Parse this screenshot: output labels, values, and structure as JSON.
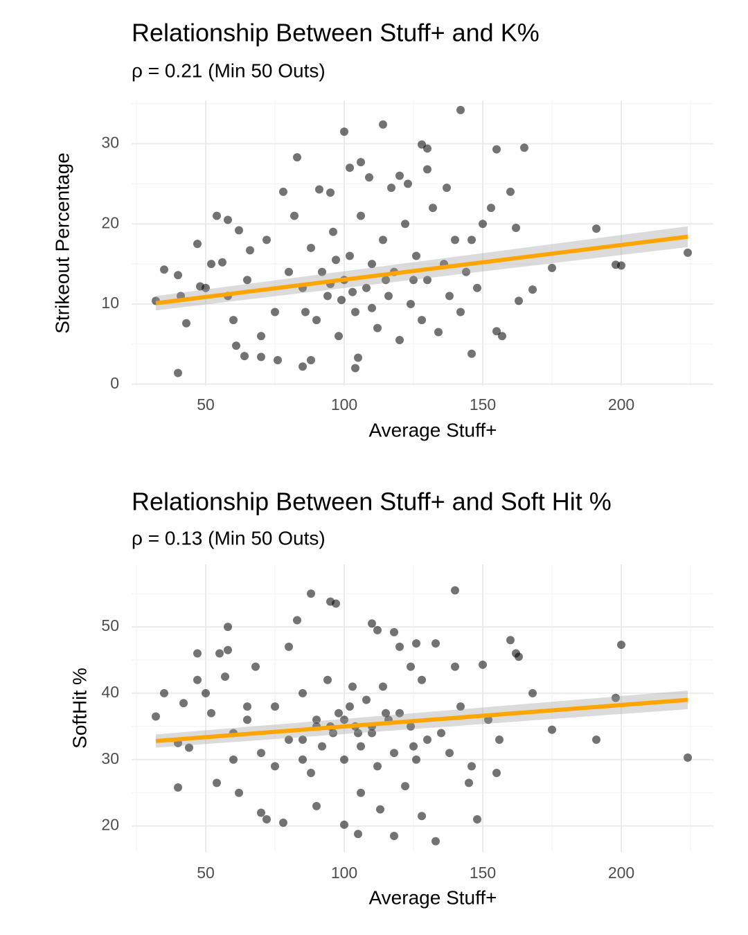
{
  "chart_data": [
    {
      "type": "scatter",
      "title": "Relationship Between Stuff+ and K%",
      "subtitle": "ρ = 0.21 (Min 50 Outs)",
      "x_label": "Average Stuff+",
      "y_label": "Strikeout Percentage",
      "xlim": [
        23.25,
        233.25
      ],
      "ylim": [
        -0.2,
        35.4
      ],
      "xticks": [
        50,
        100,
        150,
        200
      ],
      "yticks": [
        0,
        10,
        20,
        30
      ],
      "xminor": [
        25,
        75,
        125,
        175,
        225
      ],
      "yminor": [
        5,
        15,
        25,
        35
      ],
      "grid": true,
      "point_color": "#000000",
      "x": [
        32,
        35,
        40,
        40,
        41,
        43,
        47,
        48,
        50,
        52,
        54,
        56,
        58,
        58,
        61,
        62,
        64,
        66,
        70,
        76,
        78,
        83,
        85,
        91,
        95,
        100,
        102,
        106,
        109,
        114,
        117,
        120,
        123,
        128,
        130,
        130,
        137,
        142,
        146,
        155,
        165,
        160,
        162,
        168,
        175,
        191,
        198,
        200,
        224,
        104,
        105,
        88,
        150,
        155,
        157,
        163,
        153,
        146,
        60,
        65,
        70,
        72,
        75,
        80,
        82,
        85,
        88,
        90,
        92,
        94,
        96,
        98,
        100,
        102,
        104,
        106,
        108,
        110,
        112,
        114,
        116,
        118,
        120,
        122,
        124,
        126,
        128,
        130,
        132,
        134,
        136,
        138,
        140,
        142,
        144,
        148,
        95,
        99,
        103,
        97,
        110,
        86,
        115,
        125
      ],
      "y": [
        10.4,
        14.3,
        1.4,
        13.6,
        11,
        7.6,
        17.5,
        12.2,
        12,
        15,
        21,
        15.2,
        11,
        20.5,
        4.8,
        19.2,
        3.5,
        16.7,
        3.4,
        3,
        24,
        28.3,
        2.2,
        24.3,
        23.9,
        31.5,
        27,
        27.7,
        25.8,
        32.4,
        24.5,
        26,
        25,
        29.9,
        29.4,
        26.8,
        24.5,
        34.2,
        3.8,
        29.3,
        29.5,
        24,
        19.5,
        11.8,
        14.5,
        19.4,
        14.9,
        14.8,
        16.4,
        2,
        3.3,
        3,
        20,
        6.6,
        6,
        10.4,
        22,
        18,
        8,
        13,
        6,
        18,
        9,
        14,
        21,
        12,
        17,
        8,
        14,
        11,
        19,
        6,
        13,
        16,
        9,
        21,
        12,
        15,
        7,
        18,
        11,
        14,
        5.5,
        20,
        10,
        16,
        8,
        13,
        22,
        6.5,
        15,
        11,
        18,
        9,
        14,
        12,
        12.5,
        10.5,
        11.5,
        15.5,
        9.5,
        9,
        13,
        13
      ],
      "trend": {
        "x": [
          32,
          224
        ],
        "y": [
          10.1,
          18.4
        ],
        "lower": [
          9.2,
          17.1
        ],
        "upper": [
          11.0,
          19.7
        ],
        "color": "#ffa500"
      }
    },
    {
      "type": "scatter",
      "title": "Relationship Between Stuff+ and Soft Hit %",
      "subtitle": "ρ = 0.13 (Min 50 Outs)",
      "x_label": "Average Stuff+",
      "y_label": "SoftHit %",
      "xlim": [
        23.25,
        233.25
      ],
      "ylim": [
        16.1,
        59.4
      ],
      "xticks": [
        50,
        100,
        150,
        200
      ],
      "yticks": [
        20,
        30,
        40,
        50
      ],
      "xminor": [
        25,
        75,
        125,
        175,
        225
      ],
      "yminor": [
        25,
        35,
        45,
        55
      ],
      "grid": true,
      "point_color": "#000000",
      "x": [
        32,
        35,
        40,
        40,
        42,
        44,
        47,
        47,
        50,
        52,
        54,
        55,
        57,
        58,
        58,
        60,
        62,
        65,
        68,
        70,
        72,
        75,
        78,
        80,
        83,
        85,
        88,
        90,
        95,
        97,
        100,
        103,
        106,
        110,
        112,
        118,
        118,
        120,
        124,
        126,
        133,
        133,
        140,
        140,
        145,
        148,
        150,
        155,
        160,
        162,
        163,
        168,
        175,
        191,
        198,
        200,
        224,
        105,
        113,
        128,
        60,
        65,
        70,
        75,
        80,
        85,
        88,
        90,
        92,
        94,
        96,
        98,
        100,
        102,
        104,
        106,
        108,
        110,
        112,
        114,
        116,
        118,
        120,
        122,
        124,
        126,
        128,
        130,
        135,
        138,
        142,
        146,
        152,
        156,
        95,
        100,
        105,
        110,
        115,
        90,
        85,
        125
      ],
      "y": [
        36.5,
        40,
        25.8,
        32.5,
        38.5,
        31.8,
        46,
        42,
        40,
        37,
        26.5,
        46,
        42.5,
        50,
        46.5,
        30,
        25,
        38,
        44,
        22,
        21,
        29,
        20.5,
        47,
        51,
        30,
        55,
        23,
        53.8,
        53.5,
        20.2,
        41,
        25,
        50.5,
        49.5,
        49.2,
        18.5,
        47,
        44,
        47.5,
        17.7,
        47.5,
        55.5,
        44,
        26.5,
        21,
        44.3,
        28,
        48,
        46,
        45.5,
        40,
        34.5,
        33,
        39.3,
        47.3,
        30.3,
        18.8,
        22.5,
        21.5,
        34,
        36,
        31,
        38,
        33,
        40,
        28,
        36,
        32,
        42,
        34,
        37,
        30,
        38,
        35,
        32,
        39,
        34,
        29,
        41,
        36,
        31,
        37,
        26,
        35,
        30,
        42,
        33,
        34,
        31,
        38,
        29,
        36,
        33,
        35,
        36,
        34,
        35,
        37,
        35,
        33,
        32
      ],
      "trend": {
        "x": [
          32,
          224
        ],
        "y": [
          32.8,
          39.0
        ],
        "lower": [
          31.8,
          37.6
        ],
        "upper": [
          33.8,
          40.4
        ],
        "color": "#ffa500"
      }
    }
  ]
}
